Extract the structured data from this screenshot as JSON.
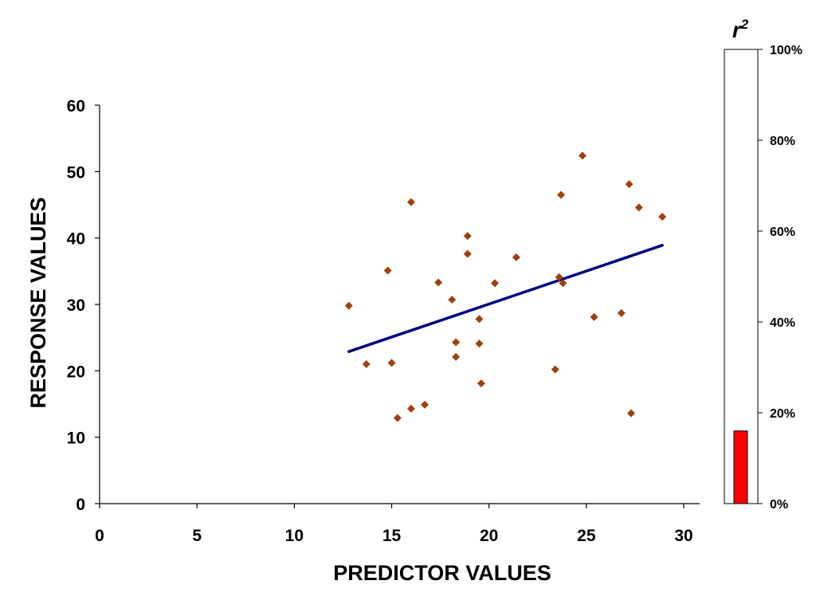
{
  "chart_data": [
    {
      "type": "scatter",
      "xlabel": "PREDICTOR VALUES",
      "ylabel": "RESPONSE VALUES",
      "xlim": [
        0,
        30
      ],
      "ylim": [
        0,
        60
      ],
      "x_ticks": [
        "0",
        "5",
        "10",
        "15",
        "20",
        "25",
        "30"
      ],
      "y_ticks": [
        "0",
        "10",
        "20",
        "30",
        "40",
        "50",
        "60"
      ],
      "grid": false,
      "colors": {
        "points": "#a0400c",
        "trendline": "#000080"
      },
      "points": [
        [
          12.8,
          29.8
        ],
        [
          13.7,
          21.0
        ],
        [
          14.8,
          35.1
        ],
        [
          15.0,
          21.2
        ],
        [
          15.3,
          12.9
        ],
        [
          16.0,
          45.4
        ],
        [
          16.0,
          14.3
        ],
        [
          16.7,
          14.9
        ],
        [
          17.4,
          33.3
        ],
        [
          18.1,
          30.7
        ],
        [
          18.3,
          24.3
        ],
        [
          18.3,
          22.1
        ],
        [
          18.9,
          40.3
        ],
        [
          18.9,
          37.6
        ],
        [
          19.5,
          27.8
        ],
        [
          19.5,
          24.1
        ],
        [
          19.6,
          18.1
        ],
        [
          20.3,
          33.2
        ],
        [
          21.4,
          37.1
        ],
        [
          23.4,
          20.2
        ],
        [
          23.7,
          46.5
        ],
        [
          23.6,
          34.1
        ],
        [
          23.8,
          33.2
        ],
        [
          24.8,
          52.4
        ],
        [
          25.4,
          28.1
        ],
        [
          26.8,
          28.7
        ],
        [
          27.2,
          48.1
        ],
        [
          27.3,
          13.6
        ],
        [
          27.7,
          44.6
        ],
        [
          28.9,
          43.2
        ]
      ],
      "trendline": {
        "x": [
          12.8,
          28.9
        ],
        "y": [
          22.9,
          38.9
        ]
      }
    },
    {
      "type": "bar",
      "title": "r",
      "title_superscript": "2",
      "ylim": [
        0,
        1
      ],
      "y_ticks": [
        "0%",
        "20%",
        "40%",
        "60%",
        "80%",
        "100%"
      ],
      "values": [
        0.16
      ],
      "color": "#ff0000"
    }
  ]
}
